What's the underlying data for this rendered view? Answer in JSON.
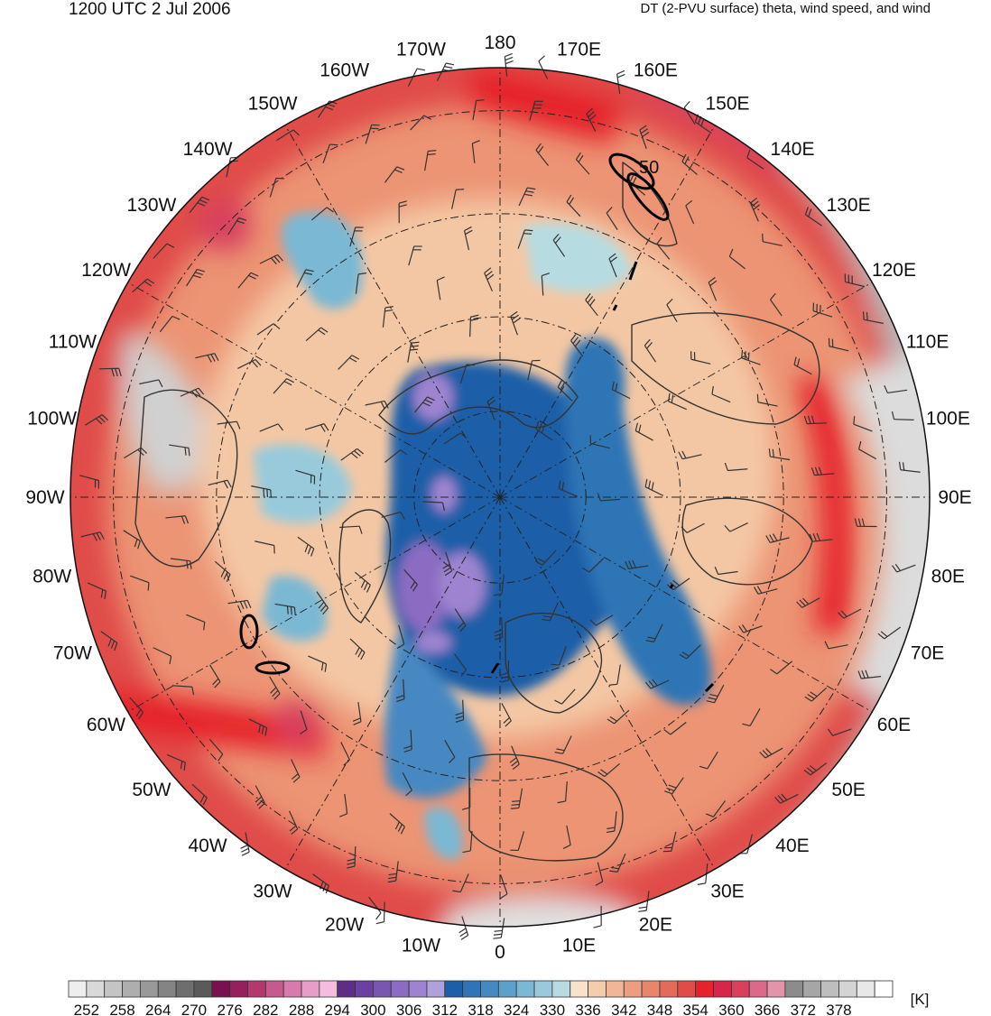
{
  "header": {
    "valid_time": "1200 UTC 2 Jul 2006",
    "field_title": "DT (2-PVU surface) theta, wind speed, and wind"
  },
  "map": {
    "projection": "north polar stereographic",
    "center": "North Pole",
    "longitude_labels": [
      {
        "lon": 0,
        "label": "0"
      },
      {
        "lon": 10,
        "label": "10E"
      },
      {
        "lon": 20,
        "label": "20E"
      },
      {
        "lon": 30,
        "label": "30E"
      },
      {
        "lon": 40,
        "label": "40E"
      },
      {
        "lon": 50,
        "label": "50E"
      },
      {
        "lon": 60,
        "label": "60E"
      },
      {
        "lon": 70,
        "label": "70E"
      },
      {
        "lon": 80,
        "label": "80E"
      },
      {
        "lon": 90,
        "label": "90E"
      },
      {
        "lon": 100,
        "label": "100E"
      },
      {
        "lon": 110,
        "label": "110E"
      },
      {
        "lon": 120,
        "label": "120E"
      },
      {
        "lon": 130,
        "label": "130E"
      },
      {
        "lon": 140,
        "label": "140E"
      },
      {
        "lon": 150,
        "label": "150E"
      },
      {
        "lon": 160,
        "label": "160E"
      },
      {
        "lon": 170,
        "label": "170E"
      },
      {
        "lon": 180,
        "label": "180"
      },
      {
        "lon": -170,
        "label": "170W"
      },
      {
        "lon": -160,
        "label": "160W"
      },
      {
        "lon": -150,
        "label": "150W"
      },
      {
        "lon": -140,
        "label": "140W"
      },
      {
        "lon": -130,
        "label": "130W"
      },
      {
        "lon": -120,
        "label": "120W"
      },
      {
        "lon": -110,
        "label": "110W"
      },
      {
        "lon": -100,
        "label": "100W"
      },
      {
        "lon": -90,
        "label": "90W"
      },
      {
        "lon": -80,
        "label": "80W"
      },
      {
        "lon": -70,
        "label": "70W"
      },
      {
        "lon": -60,
        "label": "60W"
      },
      {
        "lon": -50,
        "label": "50W"
      },
      {
        "lon": -40,
        "label": "40W"
      },
      {
        "lon": -30,
        "label": "30W"
      },
      {
        "lon": -20,
        "label": "20W"
      },
      {
        "lon": -10,
        "label": "10W"
      }
    ],
    "wind_speed_contour_label": "50",
    "fill_colors": {
      "deep_blue": "#1a5fa8",
      "mid_blue": "#4b8cc4",
      "light_blue": "#a5d6e0",
      "purple": "#9a7fc8",
      "peach": "#f4c7a4",
      "salmon": "#ec9474",
      "red": "#e23a3a",
      "crimson": "#d81e5b",
      "gray": "#9a9a9a",
      "light_gray": "#d6d6d6"
    }
  },
  "colorbar": {
    "unit": "[K]",
    "tick_labels": [
      "252",
      "258",
      "264",
      "270",
      "276",
      "282",
      "288",
      "294",
      "300",
      "306",
      "312",
      "318",
      "324",
      "330",
      "336",
      "342",
      "348",
      "354",
      "360",
      "366",
      "372",
      "378"
    ],
    "colors": [
      "#eeeeee",
      "#d9d9d9",
      "#c4c4c4",
      "#aeaeae",
      "#999999",
      "#848484",
      "#6e6e6e",
      "#5a5a5a",
      "#7a1050",
      "#96205e",
      "#b2386e",
      "#c65a8e",
      "#d87aae",
      "#e89cc8",
      "#f4bde0",
      "#5e2e86",
      "#6c40a0",
      "#7a56b2",
      "#8c6cc2",
      "#9e84d0",
      "#b0a0dc",
      "#1a5fa8",
      "#2e74b6",
      "#4688c2",
      "#5ea0cc",
      "#7ab8d4",
      "#98cadc",
      "#b6dce2",
      "#f9e2cc",
      "#f4cdae",
      "#f0b696",
      "#ec9e80",
      "#e8866c",
      "#e46a5a",
      "#e04c48",
      "#e6222c",
      "#d8264a",
      "#d8405e",
      "#dc6a86",
      "#e494aa",
      "#8c8c8c",
      "#a6a6a6",
      "#bebebe",
      "#d4d4d4",
      "#e8e8e8",
      "#ffffff"
    ]
  }
}
